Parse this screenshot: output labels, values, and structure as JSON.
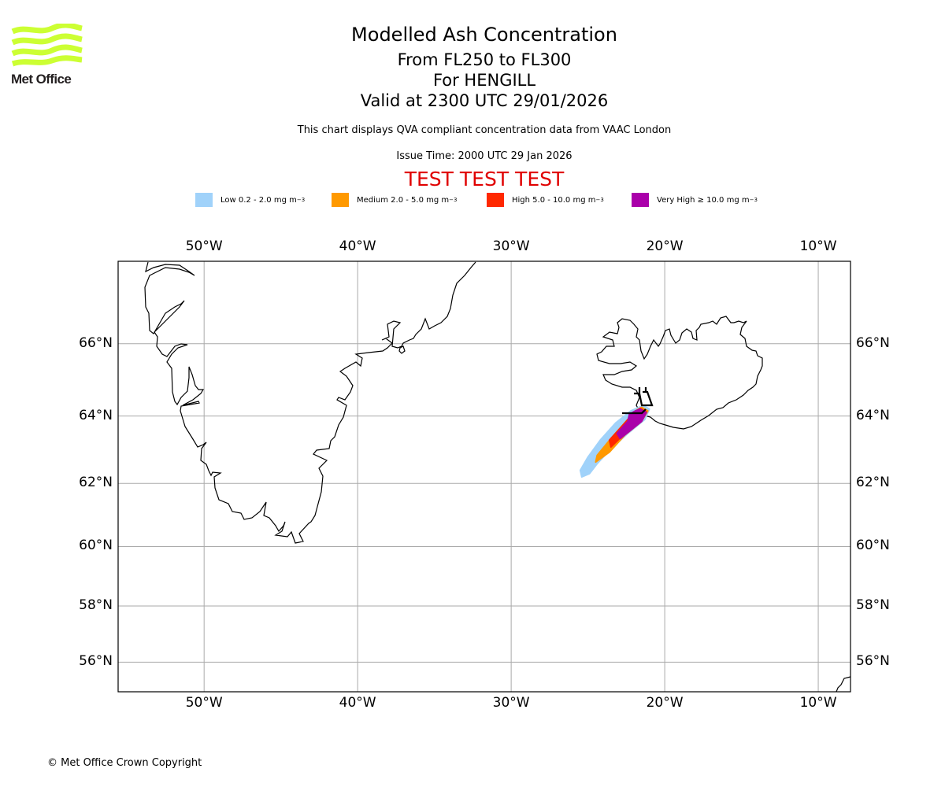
{
  "logo": {
    "name": "Met Office",
    "color": "#ccff33"
  },
  "header": {
    "title": "Modelled Ash Concentration",
    "flight_levels": "From FL250 to FL300",
    "volcano": "For HENGILL",
    "valid": "Valid at 2300 UTC 29/01/2026",
    "subtitle": "This chart displays QVA compliant concentration data from VAAC London",
    "issue_time": "Issue Time: 2000 UTC 29 Jan 2026",
    "test_banner": "TEST TEST TEST",
    "test_color": "#e00000"
  },
  "legend": [
    {
      "label": "Low 0.2 - 2.0 mg m",
      "sup": "−3",
      "color": "#a0d2fa"
    },
    {
      "label": "Medium 2.0 - 5.0 mg m",
      "sup": "−3",
      "color": "#ff9900"
    },
    {
      "label": "High 5.0 - 10.0 mg m",
      "sup": "−3",
      "color": "#ff2800"
    },
    {
      "label": "Very High ≥ 10.0 mg m",
      "sup": "−3",
      "color": "#aa00aa"
    }
  ],
  "footer": {
    "copyright": "© Met Office Crown Copyright"
  },
  "chart_data": {
    "type": "map",
    "title": "Modelled Ash Concentration",
    "extent": {
      "lon": [
        -55.6,
        -7.9
      ],
      "lat": [
        54.9,
        68.1
      ]
    },
    "grid": true,
    "x_ticks": [
      {
        "lon": -50,
        "label": "50°W"
      },
      {
        "lon": -40,
        "label": "40°W"
      },
      {
        "lon": -30,
        "label": "30°W"
      },
      {
        "lon": -20,
        "label": "20°W"
      },
      {
        "lon": -10,
        "label": "10°W"
      }
    ],
    "y_ticks": [
      {
        "lat": 66,
        "label": "66°N"
      },
      {
        "lat": 64,
        "label": "64°N"
      },
      {
        "lat": 62,
        "label": "62°N"
      },
      {
        "lat": 60,
        "label": "60°N"
      },
      {
        "lat": 58,
        "label": "58°N"
      },
      {
        "lat": 56,
        "label": "56°N"
      }
    ],
    "volcano": {
      "name": "HENGILL",
      "lon": -21.3,
      "lat": 64.1
    },
    "ash_layers": [
      {
        "level": "Low",
        "color": "#a0d2fa",
        "polygon": [
          [
            -21.4,
            64.3
          ],
          [
            -21.0,
            64.2
          ],
          [
            -21.3,
            63.9
          ],
          [
            -22.4,
            63.5
          ],
          [
            -23.6,
            63.0
          ],
          [
            -24.4,
            62.6
          ],
          [
            -24.9,
            62.3
          ],
          [
            -25.4,
            62.2
          ],
          [
            -25.5,
            62.4
          ],
          [
            -25.0,
            62.8
          ],
          [
            -24.2,
            63.3
          ],
          [
            -23.2,
            63.8
          ],
          [
            -22.2,
            64.15
          ]
        ]
      },
      {
        "level": "Medium",
        "color": "#ff9900",
        "polygon": [
          [
            -21.5,
            64.25
          ],
          [
            -21.1,
            64.15
          ],
          [
            -21.5,
            63.85
          ],
          [
            -22.6,
            63.45
          ],
          [
            -23.6,
            62.95
          ],
          [
            -24.5,
            62.65
          ],
          [
            -24.4,
            62.85
          ],
          [
            -23.5,
            63.35
          ],
          [
            -22.5,
            63.85
          ],
          [
            -21.9,
            64.15
          ]
        ]
      },
      {
        "level": "High",
        "color": "#ff2800",
        "polygon": [
          [
            -21.6,
            64.22
          ],
          [
            -21.2,
            64.12
          ],
          [
            -21.6,
            63.85
          ],
          [
            -22.6,
            63.5
          ],
          [
            -23.5,
            63.1
          ],
          [
            -23.6,
            63.3
          ],
          [
            -22.7,
            63.75
          ],
          [
            -22.0,
            64.1
          ]
        ]
      },
      {
        "level": "Very High",
        "color": "#aa00aa",
        "polygon": [
          [
            -21.6,
            64.2
          ],
          [
            -21.2,
            64.1
          ],
          [
            -21.5,
            63.85
          ],
          [
            -22.2,
            63.6
          ],
          [
            -22.9,
            63.35
          ],
          [
            -23.1,
            63.5
          ],
          [
            -22.4,
            63.85
          ],
          [
            -22.3,
            64.05
          ],
          [
            -21.9,
            64.15
          ]
        ]
      }
    ]
  }
}
